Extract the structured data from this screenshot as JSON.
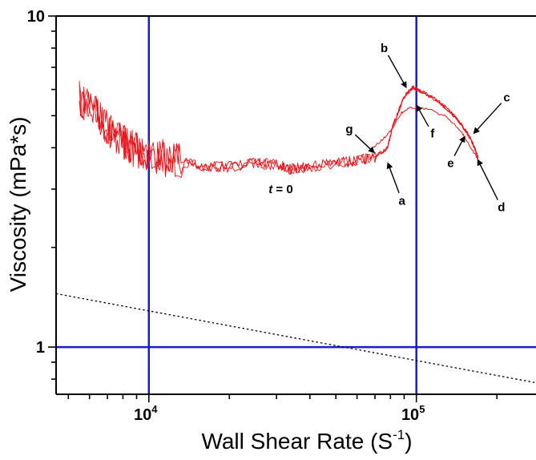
{
  "chart_data": {
    "type": "line",
    "xlabel": "Wall Shear Rate (S",
    "xlabel_sup": "-1",
    "xlabel_end": ")",
    "ylabel": "Viscosity (mPa*s)",
    "xscale": "log",
    "yscale": "log",
    "xlim": [
      4500,
      280000
    ],
    "ylim": [
      0.72,
      10
    ],
    "x_ticks": [
      {
        "value": 10000,
        "base": "10",
        "exp": "4"
      },
      {
        "value": 100000,
        "base": "10",
        "exp": "5"
      }
    ],
    "y_ticks": [
      {
        "value": 1,
        "label": "1"
      },
      {
        "value": 10,
        "label": "10"
      }
    ],
    "reference_lines": {
      "vertical": [
        10000,
        100000
      ],
      "horizontal": [
        1
      ],
      "color": "#1a1ad6"
    },
    "series": [
      {
        "color": "#e8141a",
        "points": [
          [
            5500,
            5.6
          ],
          [
            6300,
            5.1
          ],
          [
            7000,
            4.6
          ],
          [
            7800,
            4.2
          ],
          [
            8600,
            4.0
          ],
          [
            9600,
            3.85
          ],
          [
            11000,
            3.75
          ],
          [
            13000,
            3.62
          ],
          [
            16000,
            3.5
          ],
          [
            20000,
            3.5
          ],
          [
            25000,
            3.6
          ],
          [
            30000,
            3.55
          ],
          [
            34000,
            3.45
          ],
          [
            40000,
            3.5
          ],
          [
            50000,
            3.6
          ],
          [
            60000,
            3.65
          ],
          [
            70000,
            3.75
          ],
          [
            78000,
            4.0
          ],
          [
            82000,
            4.7
          ],
          [
            90000,
            5.7
          ],
          [
            97000,
            6.1
          ],
          [
            105000,
            5.9
          ],
          [
            120000,
            5.55
          ],
          [
            135000,
            5.1
          ],
          [
            150000,
            4.6
          ],
          [
            160000,
            4.25
          ],
          [
            168000,
            3.85
          ],
          [
            170000,
            3.7
          ]
        ],
        "return_points": [
          [
            170000,
            3.7
          ],
          [
            158000,
            4.05
          ],
          [
            148000,
            4.45
          ],
          [
            130000,
            4.95
          ],
          [
            110000,
            5.25
          ],
          [
            95000,
            5.3
          ],
          [
            88000,
            5.1
          ],
          [
            80000,
            4.5
          ],
          [
            74000,
            4.2
          ],
          [
            68000,
            3.95
          ]
        ]
      },
      {
        "style": "dotted",
        "color": "#000000",
        "points": [
          [
            4500,
            1.45
          ],
          [
            280000,
            0.78
          ]
        ]
      }
    ],
    "annotations": [
      {
        "label": "a",
        "x": 78000,
        "y": 3.62
      },
      {
        "label": "b",
        "x": 92000,
        "y": 6.05
      },
      {
        "label": "c",
        "x": 163000,
        "y": 4.4
      },
      {
        "label": "d",
        "x": 169000,
        "y": 3.7
      },
      {
        "label": "e",
        "x": 152000,
        "y": 4.35
      },
      {
        "label": "f",
        "x": 100000,
        "y": 5.4
      },
      {
        "label": "g",
        "x": 70000,
        "y": 3.85
      }
    ],
    "t0_label": {
      "italic": "t",
      "rest": " = 0"
    },
    "grid": false,
    "legend": "none"
  }
}
